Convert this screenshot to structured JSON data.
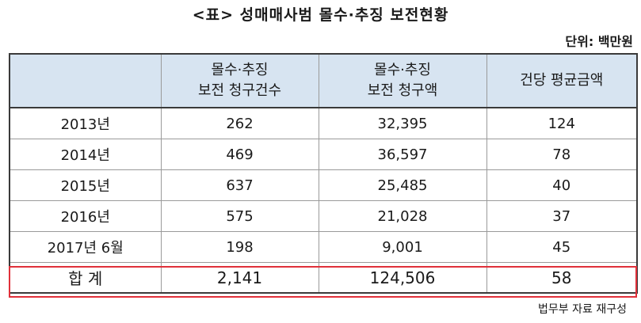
{
  "title": "<표> 성매매사범 몰수·추징 보전현황",
  "unit": "단위: 백만원",
  "columns": [
    "",
    "몰수·추징\n보전 청구건수",
    "몰수·추징\n보전 청구액",
    "건당 평균금액"
  ],
  "rows": [
    [
      "2013년",
      "262",
      "32,395",
      "124"
    ],
    [
      "2014년",
      "469",
      "36,597",
      "78"
    ],
    [
      "2015년",
      "637",
      "25,485",
      "40"
    ],
    [
      "2016년",
      "575",
      "21,028",
      "37"
    ],
    [
      "2017년 6월",
      "198",
      "9,001",
      "45"
    ]
  ],
  "total": [
    "합 계",
    "2,141",
    "124,506",
    "58"
  ],
  "source": "법무부 자료 재구성",
  "colors": {
    "header_bg": "#d7e4f1",
    "highlight": "#e0303a"
  }
}
